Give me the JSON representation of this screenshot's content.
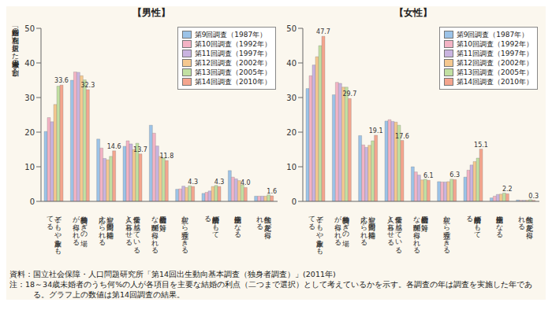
{
  "chart_data": [
    {
      "type": "bar",
      "title": "【男性】",
      "y_label": "各「結婚の利点」を選択した未婚者の割合（%）",
      "categories": [
        "子どもや家族をもてる",
        "精神的安らぎの場が得られる",
        "親や周囲の期待に応えられる",
        "愛情を感じている人と暮らせる",
        "社会的信用や対等な関係が得られる",
        "親から独立できる",
        "経済的余裕がもてる",
        "生活上便利になる",
        "性的な充足が得られる"
      ],
      "series": [
        {
          "name": "第9回調査（1987年）",
          "color": "#9cc3e8",
          "values": [
            20.2,
            35.0,
            18.0,
            15.9,
            22.0,
            3.5,
            2.3,
            8.9,
            1.5
          ]
        },
        {
          "name": "第10回調査（1992年）",
          "color": "#f3b3c4",
          "values": [
            24.2,
            37.4,
            15.4,
            17.5,
            19.7,
            3.6,
            2.6,
            7.0,
            1.5
          ]
        },
        {
          "name": "第11回調査（1997年）",
          "color": "#c9b4e0",
          "values": [
            23.0,
            37.3,
            12.4,
            16.6,
            16.0,
            4.4,
            3.0,
            6.5,
            1.5
          ]
        },
        {
          "name": "第12回調査（2002年）",
          "color": "#f5c88f",
          "values": [
            28.0,
            36.3,
            12.0,
            15.0,
            13.0,
            4.0,
            4.3,
            6.0,
            1.5
          ]
        },
        {
          "name": "第13回調査（2005年）",
          "color": "#c2e0a2",
          "values": [
            33.3,
            35.1,
            13.0,
            16.8,
            12.5,
            4.5,
            4.6,
            4.8,
            1.9
          ]
        },
        {
          "name": "第14回調査（2010年）",
          "color": "#f4a58e",
          "values": [
            33.6,
            32.3,
            14.6,
            13.7,
            11.8,
            4.3,
            4.3,
            4.0,
            1.6
          ],
          "data_labels": true,
          "value_labels": [
            "33.6",
            "32.3",
            "14.6",
            "13.7",
            "11.8",
            "4.3",
            "4.3",
            "4.0",
            "1.6"
          ]
        }
      ],
      "ylim": [
        0,
        50
      ],
      "yticks": [
        0,
        10,
        20,
        30,
        40,
        50
      ],
      "grid": false,
      "legend": "upper right"
    },
    {
      "type": "bar",
      "title": "【女性】",
      "categories": [
        "子どもや家族をもてる",
        "精神的安らぎの場が得られる",
        "親や周囲の期待に応えられる",
        "愛情を感じている人と暮らせる",
        "社会的信用や対等な関係が得られる",
        "親から独立できる",
        "経済的余裕がもてる",
        "生活上便利になる",
        "性的な充足が得られる"
      ],
      "series": [
        {
          "name": "第9回調査（1987年）",
          "color": "#9cc3e8",
          "values": [
            32.6,
            30.8,
            19.0,
            23.2,
            10.0,
            5.7,
            7.0,
            1.0,
            0.4
          ]
        },
        {
          "name": "第10回調査（1992年）",
          "color": "#f3b3c4",
          "values": [
            36.3,
            34.4,
            16.3,
            23.6,
            8.5,
            5.6,
            9.0,
            1.5,
            0.3
          ]
        },
        {
          "name": "第11回調査（1997年）",
          "color": "#c9b4e0",
          "values": [
            39.4,
            34.1,
            15.6,
            23.1,
            7.6,
            5.6,
            10.5,
            2.0,
            0.3
          ]
        },
        {
          "name": "第12回調査（2002年）",
          "color": "#f5c88f",
          "values": [
            41.8,
            33.0,
            16.2,
            22.9,
            6.2,
            5.7,
            11.5,
            2.1,
            0.3
          ]
        },
        {
          "name": "第13回調査（2005年）",
          "color": "#c2e0a2",
          "values": [
            45.0,
            33.0,
            17.5,
            22.0,
            6.4,
            6.4,
            12.5,
            2.4,
            0.5
          ]
        },
        {
          "name": "第14回調査（2010年）",
          "color": "#f4a58e",
          "values": [
            47.7,
            29.7,
            19.1,
            17.6,
            6.1,
            6.3,
            15.1,
            2.2,
            0.3
          ],
          "data_labels": true,
          "value_labels": [
            "47.7",
            "29.7",
            "19.1",
            "17.6",
            "6.1",
            "6.3",
            "15.1",
            "2.2",
            "0.3"
          ]
        }
      ],
      "ylim": [
        0,
        50
      ],
      "yticks": [
        0,
        10,
        20,
        30,
        40,
        50
      ],
      "grid": false,
      "legend": "upper right"
    }
  ],
  "notes": [
    "資料：国立社会保障・人口問題研究所「第14回出生動向基本調査（独身者調査）」(2011年)",
    "注：18～34歳未婚者のうち何%の人が各項目を主要な結婚の利点（二つまで選択）として考えているかを示す。各調査の年は調査を実施した年である。グラフ上の数値は第14回調査の結果。"
  ]
}
